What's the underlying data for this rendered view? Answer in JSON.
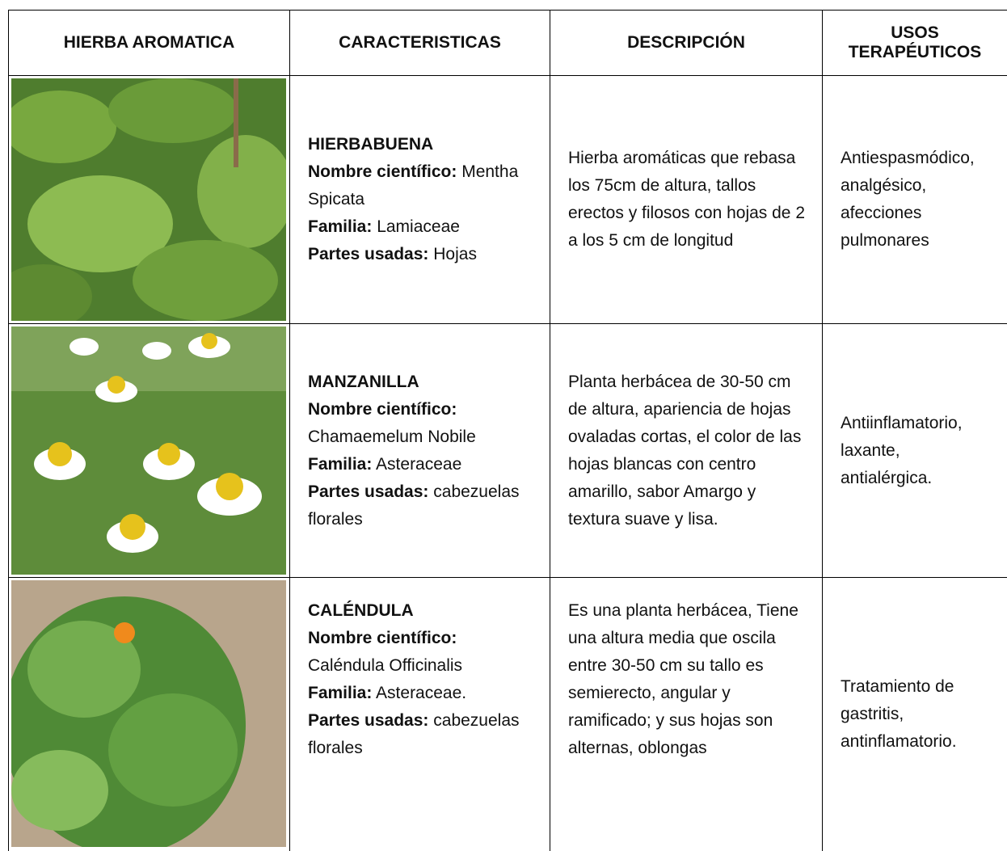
{
  "table": {
    "header": [
      "HIERBA AROMATICA",
      "CARACTERISTICAS",
      "DESCRIPCIÓN",
      "USOS TERAPÉUTICOS"
    ],
    "rows": [
      {
        "name": "HIERBABUENA",
        "fields": [
          {
            "label": "Nombre científico:",
            "value": "Mentha Spicata"
          },
          {
            "label": "Familia:",
            "value": "Lamiaceae"
          },
          {
            "label": "Partes usadas:",
            "value": "Hojas"
          }
        ],
        "description": "Hierba aromáticas que rebasa los 75cm de altura, tallos erectos y filosos con hojas de 2 a los 5 cm de longitud",
        "uses": "Antiespasmódico, analgésico, afecciones pulmonares"
      },
      {
        "name": "MANZANILLA",
        "fields": [
          {
            "label": "Nombre científico:",
            "value": "Chamaemelum Nobile"
          },
          {
            "label": "Familia:",
            "value": "Asteraceae"
          },
          {
            "label": "Partes usadas:",
            "value": "cabezuelas florales"
          }
        ],
        "description": "Planta herbácea de 30-50 cm de altura, apariencia de hojas ovaladas cortas, el color de las hojas blancas con centro amarillo, sabor Amargo y textura suave y lisa.",
        "uses": "Antiinflamatorio, laxante, antialérgica."
      },
      {
        "name": "CALÉNDULA",
        "fields": [
          {
            "label": "Nombre científico:",
            "value": "Caléndula Officinalis"
          },
          {
            "label": "Familia:",
            "value": "Asteraceae."
          },
          {
            "label": "Partes usadas:",
            "value": "cabezuelas florales"
          }
        ],
        "description": "Es una planta herbácea, Tiene una altura media que oscila entre 30-50 cm su tallo es semierecto, angular y ramificado; y sus hojas son alternas, oblongas",
        "uses": "Tratamiento de gastritis, antinflamatorio."
      }
    ]
  }
}
